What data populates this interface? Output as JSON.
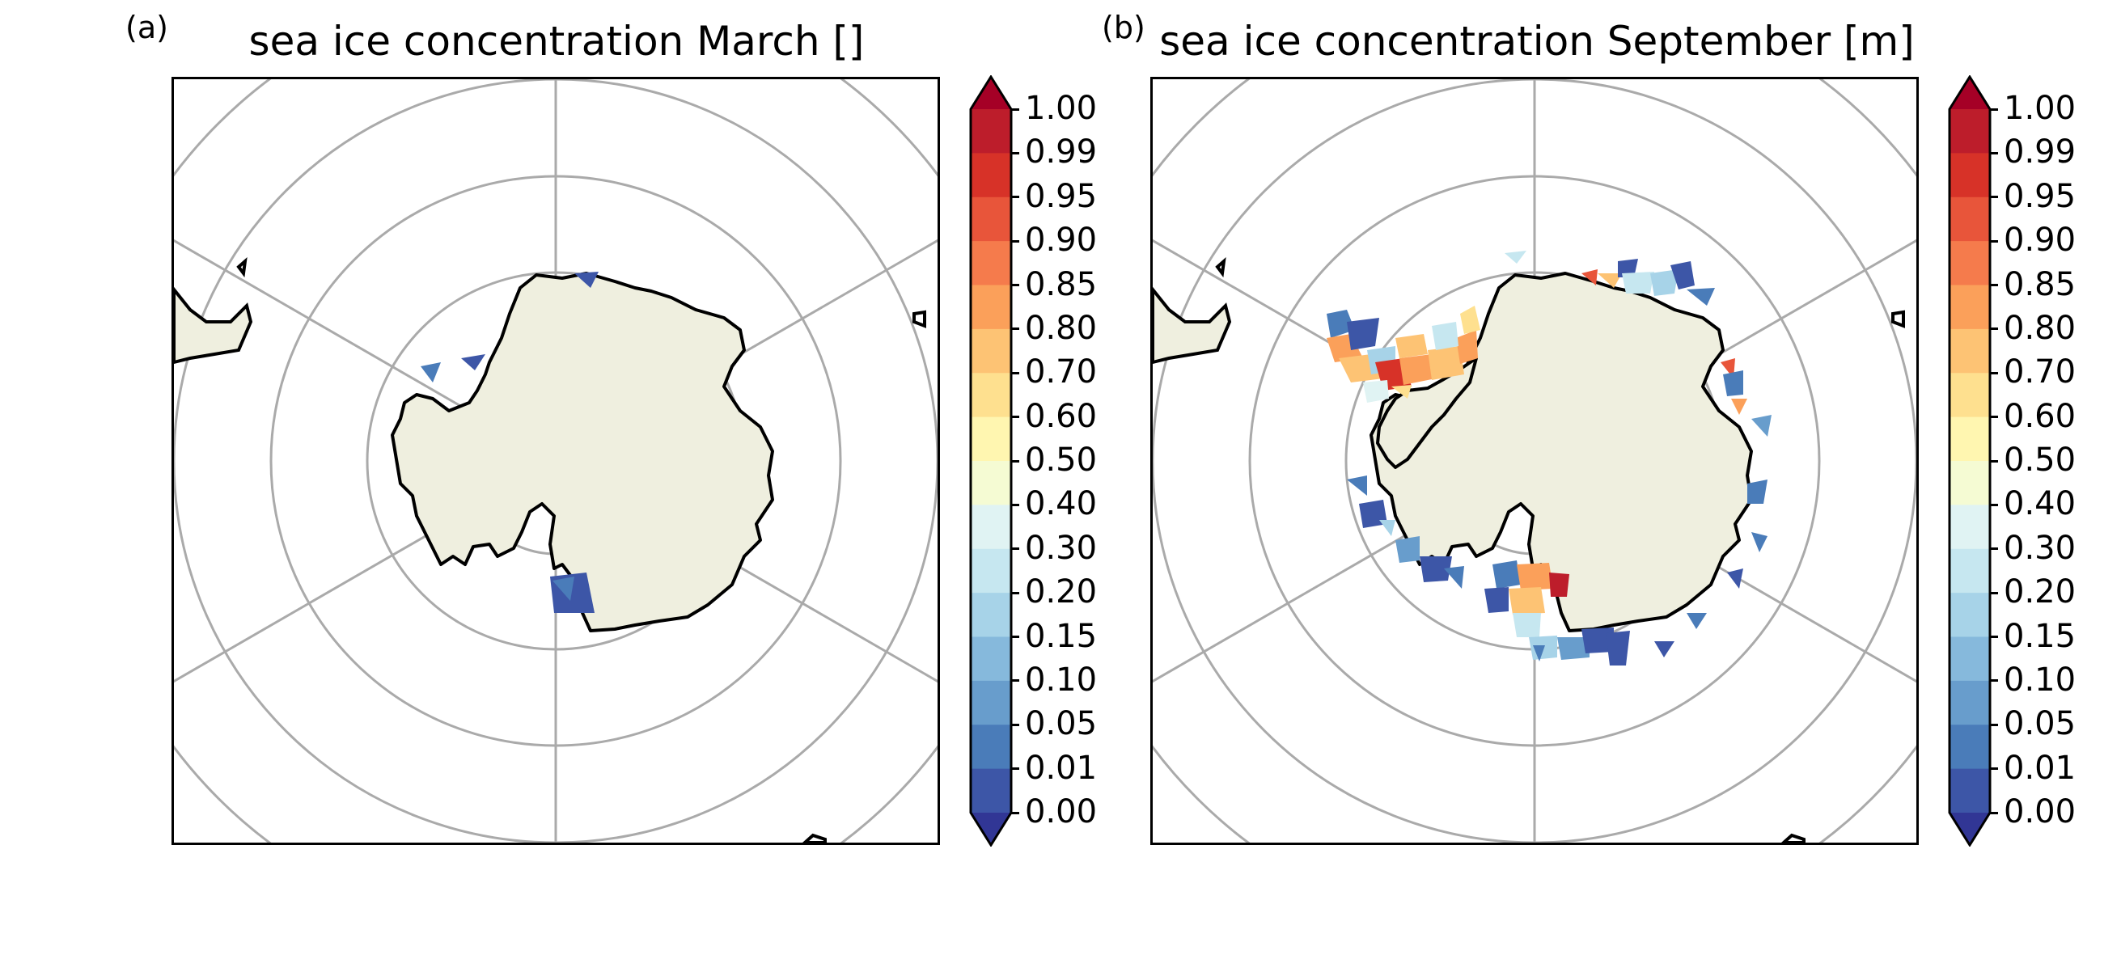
{
  "panels": [
    {
      "letter": "(a)",
      "title": "sea ice concentration March []"
    },
    {
      "letter": "(b)",
      "title": "sea ice concentration September [m]"
    }
  ],
  "colorbar": {
    "ticks": [
      "1.00",
      "0.99",
      "0.95",
      "0.90",
      "0.85",
      "0.80",
      "0.70",
      "0.60",
      "0.50",
      "0.40",
      "0.30",
      "0.20",
      "0.15",
      "0.10",
      "0.05",
      "0.01",
      "0.00"
    ],
    "colors": [
      "#bd1d2b",
      "#d73228",
      "#e8553a",
      "#f57b4c",
      "#fba05a",
      "#fdc374",
      "#fee08f",
      "#fff6b0",
      "#f5fbd3",
      "#e0f3f3",
      "#c6e7f0",
      "#a7d3e8",
      "#86b9dc",
      "#689dcc",
      "#4a7cb9",
      "#3d56a7"
    ],
    "over_color": "#a50026",
    "under_color": "#313695",
    "extend": "both"
  },
  "map": {
    "projection": "south-polar-stereographic",
    "land_color": "#efefdf",
    "coast_color": "#000000",
    "grid_color": "#aaaaaa"
  }
}
